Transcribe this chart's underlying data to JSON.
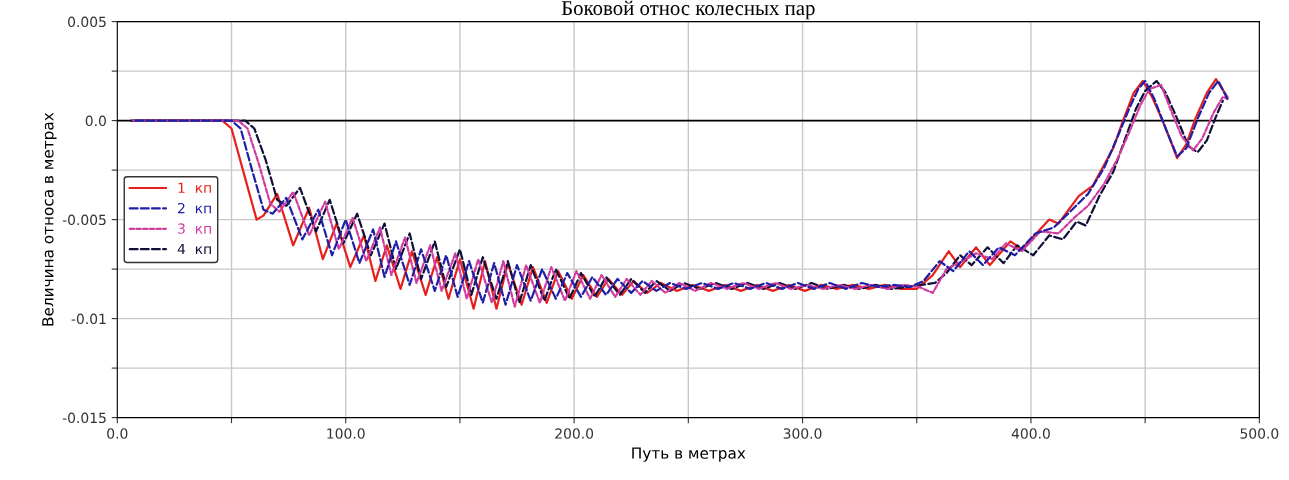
{
  "chart_data": {
    "type": "line",
    "title": "Боковой относ колесных пар",
    "xlabel": "Путь в метрах",
    "ylabel": "Величина относа в метрах",
    "xlim": [
      0,
      500
    ],
    "ylim": [
      -0.015,
      0.005
    ],
    "xticks": [
      {
        "value": 0,
        "label": "0.0"
      },
      {
        "value": 50,
        "label": null
      },
      {
        "value": 100,
        "label": "100.0"
      },
      {
        "value": 150,
        "label": null
      },
      {
        "value": 200,
        "label": "200.0"
      },
      {
        "value": 250,
        "label": null
      },
      {
        "value": 300,
        "label": "300.0"
      },
      {
        "value": 350,
        "label": null
      },
      {
        "value": 400,
        "label": "400.0"
      },
      {
        "value": 450,
        "label": null
      },
      {
        "value": 500,
        "label": "500.0"
      }
    ],
    "yticks": [
      {
        "value": -0.015,
        "label": "-0.015"
      },
      {
        "value": -0.0125,
        "label": null
      },
      {
        "value": -0.01,
        "label": "-0.01"
      },
      {
        "value": -0.0075,
        "label": null
      },
      {
        "value": -0.005,
        "label": "-0.005"
      },
      {
        "value": -0.0025,
        "label": null
      },
      {
        "value": 0,
        "label": "0.0"
      },
      {
        "value": 0.0025,
        "label": null
      },
      {
        "value": 0.005,
        "label": "0.005"
      }
    ],
    "grid": true,
    "legend": "left",
    "ref_lines": [
      {
        "axis": "y",
        "value": 0,
        "label": null,
        "color": "#000000",
        "line_style": "solid"
      }
    ],
    "series": [
      {
        "name": "1  кп",
        "color": "#e8201c",
        "line_style": "solid",
        "x": [
          9,
          46,
          50,
          55,
          61,
          64,
          70,
          77,
          84,
          90,
          96,
          102,
          108,
          113,
          118,
          124,
          129,
          135,
          140,
          145,
          150,
          156,
          161,
          166,
          171,
          177,
          182,
          188,
          193,
          199,
          204,
          210,
          215,
          221,
          226,
          232,
          238,
          245,
          252,
          259,
          266,
          273,
          280,
          287,
          294,
          301,
          308,
          315,
          322,
          329,
          336,
          343,
          350,
          357,
          364,
          369,
          376,
          382,
          391,
          396,
          408,
          412,
          421,
          427,
          436,
          440,
          445,
          449,
          453,
          458,
          464,
          468,
          472,
          477,
          481,
          486
        ],
        "values": [
          0,
          0,
          -0.0004,
          -0.0025,
          -0.005,
          -0.0048,
          -0.0037,
          -0.0063,
          -0.0044,
          -0.007,
          -0.0052,
          -0.0074,
          -0.0058,
          -0.0081,
          -0.0063,
          -0.0085,
          -0.0066,
          -0.0088,
          -0.0069,
          -0.009,
          -0.007,
          -0.0095,
          -0.0071,
          -0.0095,
          -0.0072,
          -0.0093,
          -0.0074,
          -0.0092,
          -0.0076,
          -0.009,
          -0.0078,
          -0.0089,
          -0.008,
          -0.0088,
          -0.0081,
          -0.0087,
          -0.0082,
          -0.0086,
          -0.0083,
          -0.0086,
          -0.0083,
          -0.0086,
          -0.0083,
          -0.0086,
          -0.0083,
          -0.0086,
          -0.0083,
          -0.0085,
          -0.0083,
          -0.0085,
          -0.0083,
          -0.0085,
          -0.0085,
          -0.0078,
          -0.0066,
          -0.0074,
          -0.0064,
          -0.0073,
          -0.0061,
          -0.0065,
          -0.005,
          -0.0052,
          -0.0038,
          -0.0033,
          -0.0014,
          -0.0001,
          0.0014,
          0.002,
          0.0012,
          -0.0001,
          -0.0019,
          -0.0012,
          0.0001,
          0.0014,
          0.0021,
          0.0012
        ]
      },
      {
        "name": "2  кп",
        "color": "#1f1fa8",
        "line_style": "dashed",
        "x": [
          8,
          50,
          54,
          59,
          64,
          68,
          74,
          81,
          88,
          94,
          100,
          106,
          112,
          117,
          122,
          128,
          133,
          139,
          144,
          149,
          154,
          160,
          165,
          170,
          175,
          181,
          186,
          192,
          197,
          203,
          208,
          214,
          219,
          225,
          230,
          236,
          242,
          249,
          256,
          263,
          270,
          277,
          284,
          291,
          298,
          305,
          312,
          319,
          326,
          333,
          340,
          347,
          353,
          360,
          366,
          373,
          379,
          386,
          393,
          402,
          410,
          418,
          425,
          432,
          438,
          443,
          447,
          450,
          454,
          459,
          464,
          468,
          473,
          478,
          482,
          486
        ],
        "values": [
          0,
          0,
          -0.0004,
          -0.0025,
          -0.0045,
          -0.0047,
          -0.0039,
          -0.006,
          -0.0045,
          -0.0068,
          -0.005,
          -0.0072,
          -0.0055,
          -0.0079,
          -0.0061,
          -0.0083,
          -0.0065,
          -0.0086,
          -0.0068,
          -0.0089,
          -0.0071,
          -0.0092,
          -0.0072,
          -0.0093,
          -0.0073,
          -0.0091,
          -0.0075,
          -0.009,
          -0.0077,
          -0.0089,
          -0.0079,
          -0.0088,
          -0.008,
          -0.0087,
          -0.0081,
          -0.0086,
          -0.0082,
          -0.0085,
          -0.0082,
          -0.0085,
          -0.0082,
          -0.0085,
          -0.0082,
          -0.0085,
          -0.0082,
          -0.0085,
          -0.0082,
          -0.0085,
          -0.0082,
          -0.0084,
          -0.0083,
          -0.0084,
          -0.0081,
          -0.0071,
          -0.0076,
          -0.0066,
          -0.0073,
          -0.0064,
          -0.0068,
          -0.0057,
          -0.0054,
          -0.0045,
          -0.0037,
          -0.0024,
          -0.0008,
          0.0006,
          0.0016,
          0.002,
          0.0011,
          -0.0004,
          -0.0018,
          -0.0014,
          0.0001,
          0.0014,
          0.002,
          0.0011
        ]
      },
      {
        "name": "3  кп",
        "color": "#d03ca0",
        "line_style": "dotted",
        "x": [
          7,
          53,
          57,
          62,
          67,
          71,
          77,
          84,
          91,
          97,
          103,
          109,
          115,
          120,
          126,
          131,
          137,
          142,
          148,
          153,
          158,
          164,
          169,
          174,
          179,
          185,
          190,
          196,
          201,
          207,
          212,
          218,
          223,
          229,
          234,
          240,
          246,
          253,
          260,
          267,
          274,
          281,
          288,
          295,
          302,
          309,
          316,
          323,
          330,
          337,
          344,
          351,
          357,
          363,
          370,
          376,
          383,
          389,
          396,
          404,
          412,
          419,
          425,
          432,
          438,
          443,
          448,
          452,
          457,
          461,
          466,
          471,
          475,
          480,
          484,
          486
        ],
        "values": [
          0,
          0,
          -0.0004,
          -0.0022,
          -0.0042,
          -0.0046,
          -0.0036,
          -0.0058,
          -0.0041,
          -0.0065,
          -0.0049,
          -0.0071,
          -0.0054,
          -0.0078,
          -0.0059,
          -0.0082,
          -0.0063,
          -0.0086,
          -0.0067,
          -0.009,
          -0.007,
          -0.0092,
          -0.0071,
          -0.0094,
          -0.0073,
          -0.0092,
          -0.0074,
          -0.0091,
          -0.0076,
          -0.009,
          -0.0078,
          -0.0089,
          -0.008,
          -0.0088,
          -0.0081,
          -0.0087,
          -0.0082,
          -0.0086,
          -0.0082,
          -0.0085,
          -0.0082,
          -0.0085,
          -0.0082,
          -0.0085,
          -0.0083,
          -0.0085,
          -0.0083,
          -0.0085,
          -0.0083,
          -0.0085,
          -0.0083,
          -0.0084,
          -0.0087,
          -0.0075,
          -0.0071,
          -0.0067,
          -0.007,
          -0.0062,
          -0.0066,
          -0.0056,
          -0.0057,
          -0.0049,
          -0.0043,
          -0.0032,
          -0.0019,
          -0.0006,
          0.0008,
          0.0016,
          0.0018,
          0.0006,
          -0.0008,
          -0.0015,
          -0.0009,
          0.0004,
          0.0012,
          0.0011
        ]
      },
      {
        "name": "4  кп",
        "color": "#10103a",
        "line_style": "dashed",
        "x": [
          6,
          56,
          60,
          65,
          70,
          74,
          80,
          87,
          93,
          99,
          105,
          111,
          117,
          122,
          128,
          133,
          139,
          144,
          150,
          155,
          160,
          166,
          171,
          176,
          181,
          187,
          192,
          198,
          203,
          209,
          214,
          220,
          225,
          231,
          236,
          242,
          248,
          255,
          262,
          269,
          276,
          283,
          290,
          297,
          304,
          311,
          318,
          325,
          332,
          339,
          346,
          352,
          358,
          363,
          369,
          374,
          381,
          388,
          394,
          401,
          408,
          414,
          420,
          424,
          430,
          436,
          441,
          446,
          450,
          455,
          459,
          464,
          469,
          473,
          477,
          481,
          484
        ],
        "values": [
          0,
          0,
          -0.0004,
          -0.002,
          -0.004,
          -0.0043,
          -0.0034,
          -0.0056,
          -0.004,
          -0.0062,
          -0.0047,
          -0.0068,
          -0.0052,
          -0.0075,
          -0.0057,
          -0.008,
          -0.0061,
          -0.0084,
          -0.0065,
          -0.0088,
          -0.0069,
          -0.009,
          -0.0071,
          -0.0092,
          -0.0073,
          -0.0091,
          -0.0075,
          -0.009,
          -0.0077,
          -0.0089,
          -0.0079,
          -0.0088,
          -0.008,
          -0.0087,
          -0.0081,
          -0.0086,
          -0.0082,
          -0.0085,
          -0.0082,
          -0.0085,
          -0.0082,
          -0.0085,
          -0.0082,
          -0.0085,
          -0.0082,
          -0.0085,
          -0.0083,
          -0.0085,
          -0.0083,
          -0.0085,
          -0.0084,
          -0.0083,
          -0.0082,
          -0.0077,
          -0.0068,
          -0.0073,
          -0.0064,
          -0.0072,
          -0.0063,
          -0.0068,
          -0.0058,
          -0.006,
          -0.0051,
          -0.0053,
          -0.0038,
          -0.0026,
          -0.001,
          0.0006,
          0.0015,
          0.002,
          0.0014,
          0.0001,
          -0.0013,
          -0.0016,
          -0.001,
          0.0002,
          0.001
        ]
      }
    ]
  }
}
